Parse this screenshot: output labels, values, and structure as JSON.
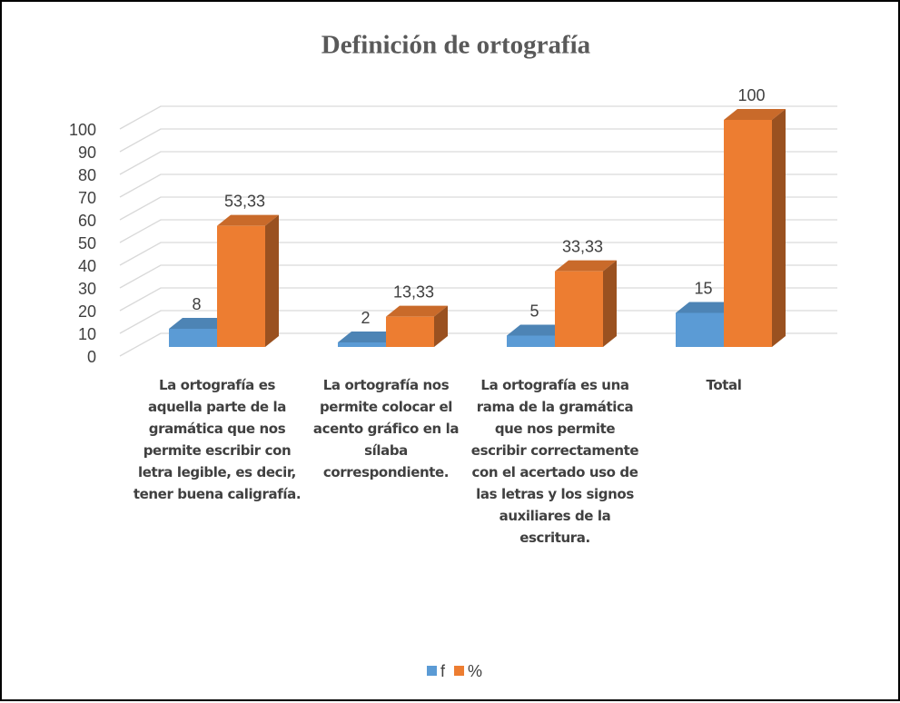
{
  "chart_data": {
    "type": "bar3d",
    "title": "Definición de ortografía",
    "categories": [
      "La ortografía es aquella parte de la gramática que nos permite escribir con letra legible, es decir, tener buena caligrafía.",
      "La ortografía nos permite colocar el acento gráfico en la sílaba correspondiente.",
      "La ortografía es una rama de la gramática que nos permite escribir correctamente con el acertado uso de las letras y los signos auxiliares de la escritura.",
      "Total"
    ],
    "series": [
      {
        "name": "f",
        "color": "#5b9bd5",
        "values": [
          8,
          2,
          5,
          15
        ]
      },
      {
        "name": "%",
        "color": "#ed7d31",
        "values": [
          53.33,
          13.33,
          33.33,
          100
        ],
        "value_labels": [
          "53,33",
          "13,33",
          "33,33",
          "100"
        ]
      }
    ],
    "ylim": [
      0,
      100
    ],
    "yticks": [
      0,
      10,
      20,
      30,
      40,
      50,
      60,
      70,
      80,
      90,
      100
    ],
    "grid": true,
    "legend": "bottom"
  }
}
